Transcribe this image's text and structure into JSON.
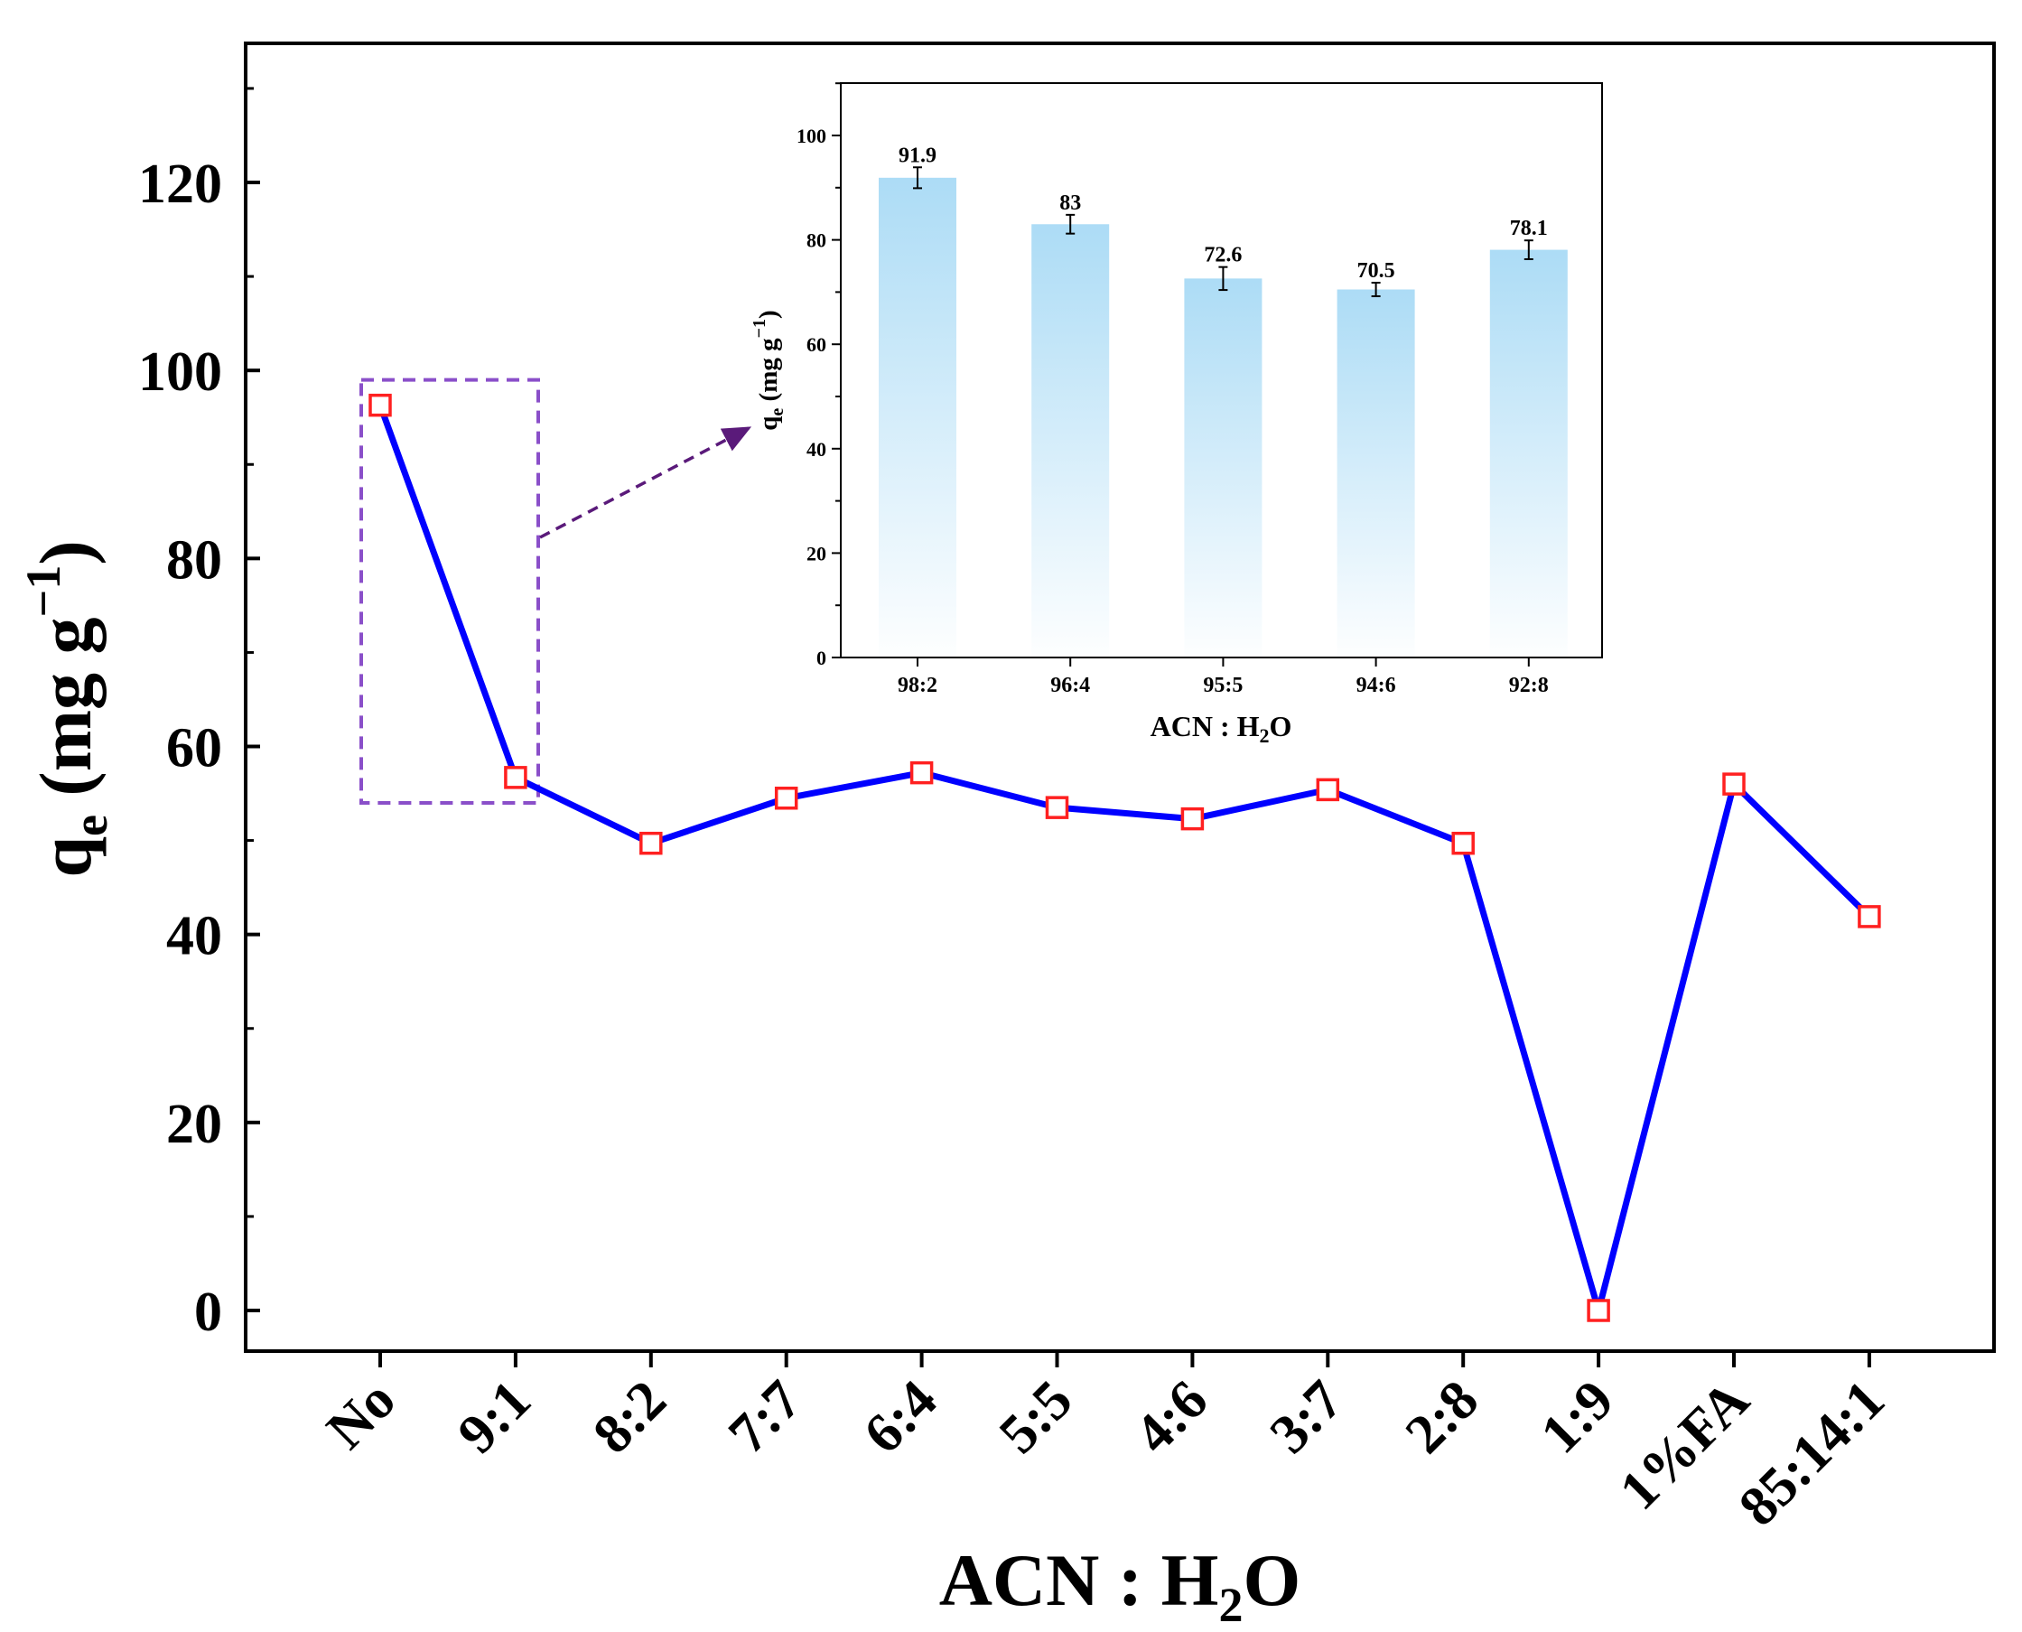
{
  "chart_data": [
    {
      "type": "line",
      "title": "",
      "xlabel_main": "ACN : H",
      "xlabel_sub": "2",
      "xlabel_tail": "O",
      "ylabel_main": "q",
      "ylabel_sub": "e",
      "ylabel_unit": "(mg g",
      "ylabel_sup": "−1",
      "ylabel_close": ")",
      "categories": [
        "No",
        "9:1",
        "8:2",
        "7:7",
        "6:4",
        "5:5",
        "4:6",
        "3:7",
        "2:8",
        "1:9",
        "1%FA",
        "85:14:1"
      ],
      "values": [
        96.3,
        56.7,
        49.7,
        54.5,
        57.2,
        53.5,
        52.3,
        55.4,
        49.7,
        0,
        56.0,
        41.9
      ],
      "ylim": [
        -5,
        135
      ],
      "yticks": [
        0,
        20,
        40,
        60,
        80,
        100,
        120
      ],
      "line_color": "#0000ff",
      "marker_color": "#ff2020",
      "highlight_color": "#8a4fc9",
      "arrow_color": "#5a1a7a"
    },
    {
      "type": "bar",
      "title": "",
      "xlabel_main": "ACN : H",
      "xlabel_sub": "2",
      "xlabel_tail": "O",
      "ylabel_main": "q",
      "ylabel_sub": "e",
      "ylabel_unit": "(mg g",
      "ylabel_sup": "−1",
      "ylabel_close": ")",
      "categories": [
        "98:2",
        "96:4",
        "95:5",
        "94:6",
        "92:8"
      ],
      "values": [
        91.9,
        83,
        72.6,
        70.5,
        78.1
      ],
      "value_labels": [
        "91.9",
        "83",
        "72.6",
        "70.5",
        "78.1"
      ],
      "errors": [
        2.0,
        1.8,
        2.2,
        1.3,
        1.8
      ],
      "ylim": [
        0,
        110
      ],
      "yticks": [
        0,
        20,
        40,
        60,
        80,
        100
      ],
      "bar_color": "#a8daf5"
    }
  ]
}
